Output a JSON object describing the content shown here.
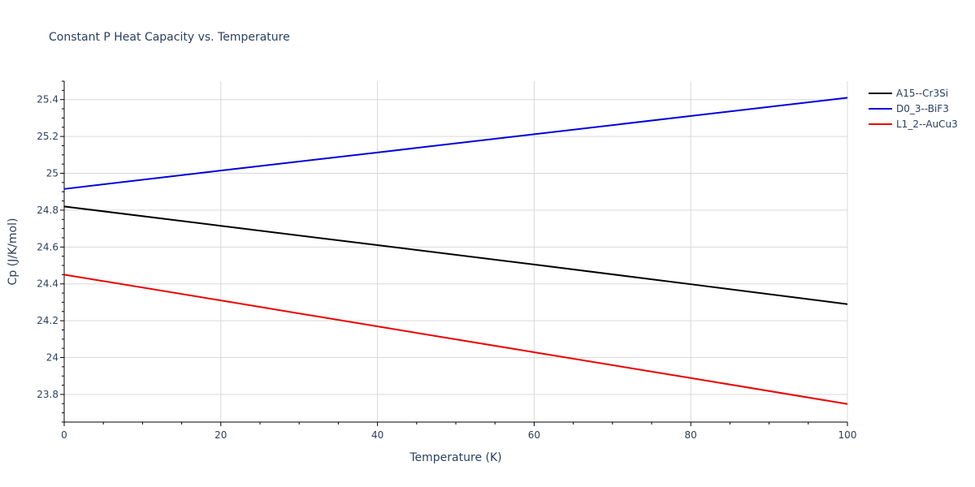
{
  "chart_data": {
    "type": "line",
    "title": "Constant P Heat Capacity vs. Temperature",
    "xlabel": "Temperature (K)",
    "ylabel": "Cp (J/K/mol)",
    "xlim": [
      0,
      100
    ],
    "ylim": [
      23.65,
      25.5
    ],
    "x_ticks": [
      0,
      20,
      40,
      60,
      80,
      100
    ],
    "x_tick_labels": [
      "0",
      "20",
      "40",
      "60",
      "80",
      "100"
    ],
    "y_ticks": [
      23.8,
      24,
      24.2,
      24.4,
      24.6,
      24.8,
      25,
      25.2,
      25.4
    ],
    "y_tick_labels": [
      "23.8",
      "24",
      "24.2",
      "24.4",
      "24.6",
      "24.8",
      "25",
      "25.2",
      "25.4"
    ],
    "grid": true,
    "legend_position": "top-right",
    "series": [
      {
        "name": "A15--Cr3Si",
        "color": "#000000",
        "x": [
          0,
          20,
          40,
          60,
          80,
          100
        ],
        "y": [
          24.82,
          24.715,
          24.61,
          24.505,
          24.398,
          24.29
        ]
      },
      {
        "name": "D0_3--BiF3",
        "color": "#0000dd",
        "x": [
          0,
          20,
          40,
          60,
          80,
          100
        ],
        "y": [
          24.915,
          25.015,
          25.113,
          25.212,
          25.311,
          25.41
        ]
      },
      {
        "name": "L1_2--AuCu3",
        "color": "#ee0000",
        "x": [
          0,
          20,
          40,
          60,
          80,
          100
        ],
        "y": [
          24.45,
          24.31,
          24.169,
          24.029,
          23.889,
          23.748
        ]
      }
    ]
  }
}
